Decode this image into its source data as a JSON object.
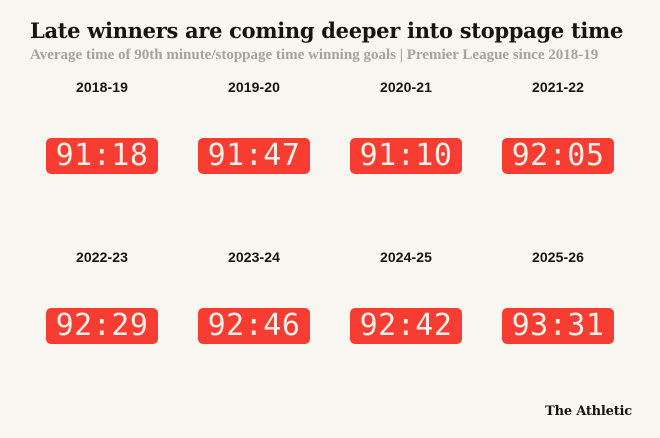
{
  "header": {
    "title": "Late winners are coming deeper into stoppage time",
    "subtitle": "Average time of 90th minute/stoppage time winning goals | Premier League since 2018-19"
  },
  "footer": {
    "brand": "The Athletic"
  },
  "colors": {
    "background": "#f7f6f1",
    "clock_background": "#f73c31",
    "clock_digits": "#feefe9",
    "title_text": "#15140f",
    "subtitle_text": "#a5a49b"
  },
  "chart_data": {
    "type": "table",
    "title": "Late winners are coming deeper into stoppage time",
    "subtitle": "Average time of 90th minute/stoppage time winning goals | Premier League since 2018-19",
    "source": "The Athletic",
    "unit": "match minute : seconds",
    "layout": "4 columns x 2 rows of clock displays",
    "categories": [
      "2018-19",
      "2019-20",
      "2020-21",
      "2021-22",
      "2022-23",
      "2023-24",
      "2024-25",
      "2025-26"
    ],
    "values": [
      "91:18",
      "91:47",
      "91:10",
      "92:05",
      "92:29",
      "92:46",
      "92:42",
      "93:31"
    ],
    "items": [
      {
        "season": "2018-19",
        "time": "91:18"
      },
      {
        "season": "2019-20",
        "time": "91:47"
      },
      {
        "season": "2020-21",
        "time": "91:10"
      },
      {
        "season": "2021-22",
        "time": "92:05"
      },
      {
        "season": "2022-23",
        "time": "92:29"
      },
      {
        "season": "2023-24",
        "time": "92:46"
      },
      {
        "season": "2024-25",
        "time": "92:42"
      },
      {
        "season": "2025-26",
        "time": "93:31"
      }
    ]
  }
}
